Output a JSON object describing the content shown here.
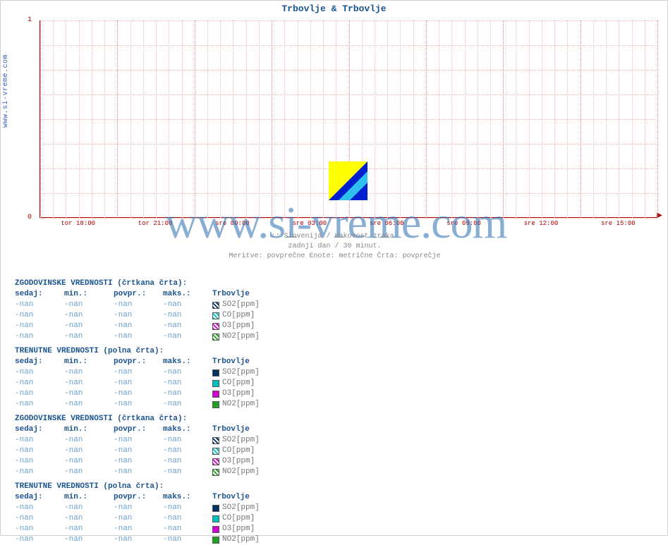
{
  "title": "Trbovlje & Trbovlje",
  "site_label": "www.si-vreme.com",
  "watermark": "www.si-vreme.com",
  "chart": {
    "type": "line",
    "ylim": [
      0,
      1
    ],
    "y_ticks": [
      "0",
      "1"
    ],
    "x_labels": [
      "tor 18:00",
      "tor 21:00",
      "sre 00:00",
      "sre 03:00",
      "sre 06:00",
      "sre 09:00",
      "sre 12:00",
      "sre 15:00"
    ],
    "grid_color": "#f5b5b5",
    "axis_color": "#b00000",
    "background_color": "#ffffff",
    "minor_rows": 8,
    "minor_cols": 48
  },
  "subtext_line1": ":: Slovenija / Kakovost zraka.",
  "subtext_line2": "zadnji dan / 30 minut.",
  "subtext_line3": "Meritve: povprečne   Enote: metrične   Črta: povprečje",
  "sections": [
    {
      "title": "ZGODOVINSKE VREDNOSTI (črtkana črta):",
      "headers": [
        "sedaj:",
        "min.:",
        "povpr.:",
        "maks.:",
        "Trbovlje"
      ],
      "rows": [
        {
          "v": [
            "-nan",
            "-nan",
            "-nan",
            "-nan"
          ],
          "swatch": "#003060",
          "swatch_pattern": "dotted",
          "label": "SO2[ppm]"
        },
        {
          "v": [
            "-nan",
            "-nan",
            "-nan",
            "-nan"
          ],
          "swatch": "#00c0c0",
          "swatch_pattern": "dotted",
          "label": "CO[ppm]"
        },
        {
          "v": [
            "-nan",
            "-nan",
            "-nan",
            "-nan"
          ],
          "swatch": "#d000d0",
          "swatch_pattern": "dotted",
          "label": "O3[ppm]"
        },
        {
          "v": [
            "-nan",
            "-nan",
            "-nan",
            "-nan"
          ],
          "swatch": "#20a020",
          "swatch_pattern": "dotted",
          "label": "NO2[ppm]"
        }
      ]
    },
    {
      "title": "TRENUTNE VREDNOSTI (polna črta):",
      "headers": [
        "sedaj:",
        "min.:",
        "povpr.:",
        "maks.:",
        "Trbovlje"
      ],
      "rows": [
        {
          "v": [
            "-nan",
            "-nan",
            "-nan",
            "-nan"
          ],
          "swatch": "#003060",
          "swatch_pattern": "solid",
          "label": "SO2[ppm]"
        },
        {
          "v": [
            "-nan",
            "-nan",
            "-nan",
            "-nan"
          ],
          "swatch": "#00c0c0",
          "swatch_pattern": "solid",
          "label": "CO[ppm]"
        },
        {
          "v": [
            "-nan",
            "-nan",
            "-nan",
            "-nan"
          ],
          "swatch": "#d000d0",
          "swatch_pattern": "solid",
          "label": "O3[ppm]"
        },
        {
          "v": [
            "-nan",
            "-nan",
            "-nan",
            "-nan"
          ],
          "swatch": "#20a020",
          "swatch_pattern": "solid",
          "label": "NO2[ppm]"
        }
      ]
    },
    {
      "title": "ZGODOVINSKE VREDNOSTI (črtkana črta):",
      "headers": [
        "sedaj:",
        "min.:",
        "povpr.:",
        "maks.:",
        "Trbovlje"
      ],
      "rows": [
        {
          "v": [
            "-nan",
            "-nan",
            "-nan",
            "-nan"
          ],
          "swatch": "#003060",
          "swatch_pattern": "dotted",
          "label": "SO2[ppm]"
        },
        {
          "v": [
            "-nan",
            "-nan",
            "-nan",
            "-nan"
          ],
          "swatch": "#00c0c0",
          "swatch_pattern": "dotted",
          "label": "CO[ppm]"
        },
        {
          "v": [
            "-nan",
            "-nan",
            "-nan",
            "-nan"
          ],
          "swatch": "#d000d0",
          "swatch_pattern": "dotted",
          "label": "O3[ppm]"
        },
        {
          "v": [
            "-nan",
            "-nan",
            "-nan",
            "-nan"
          ],
          "swatch": "#20a020",
          "swatch_pattern": "dotted",
          "label": "NO2[ppm]"
        }
      ]
    },
    {
      "title": "TRENUTNE VREDNOSTI (polna črta):",
      "headers": [
        "sedaj:",
        "min.:",
        "povpr.:",
        "maks.:",
        "Trbovlje"
      ],
      "rows": [
        {
          "v": [
            "-nan",
            "-nan",
            "-nan",
            "-nan"
          ],
          "swatch": "#003060",
          "swatch_pattern": "solid",
          "label": "SO2[ppm]"
        },
        {
          "v": [
            "-nan",
            "-nan",
            "-nan",
            "-nan"
          ],
          "swatch": "#00c0c0",
          "swatch_pattern": "solid",
          "label": "CO[ppm]"
        },
        {
          "v": [
            "-nan",
            "-nan",
            "-nan",
            "-nan"
          ],
          "swatch": "#d000d0",
          "swatch_pattern": "solid",
          "label": "O3[ppm]"
        },
        {
          "v": [
            "-nan",
            "-nan",
            "-nan",
            "-nan"
          ],
          "swatch": "#20a020",
          "swatch_pattern": "solid",
          "label": "NO2[ppm]"
        }
      ]
    }
  ]
}
